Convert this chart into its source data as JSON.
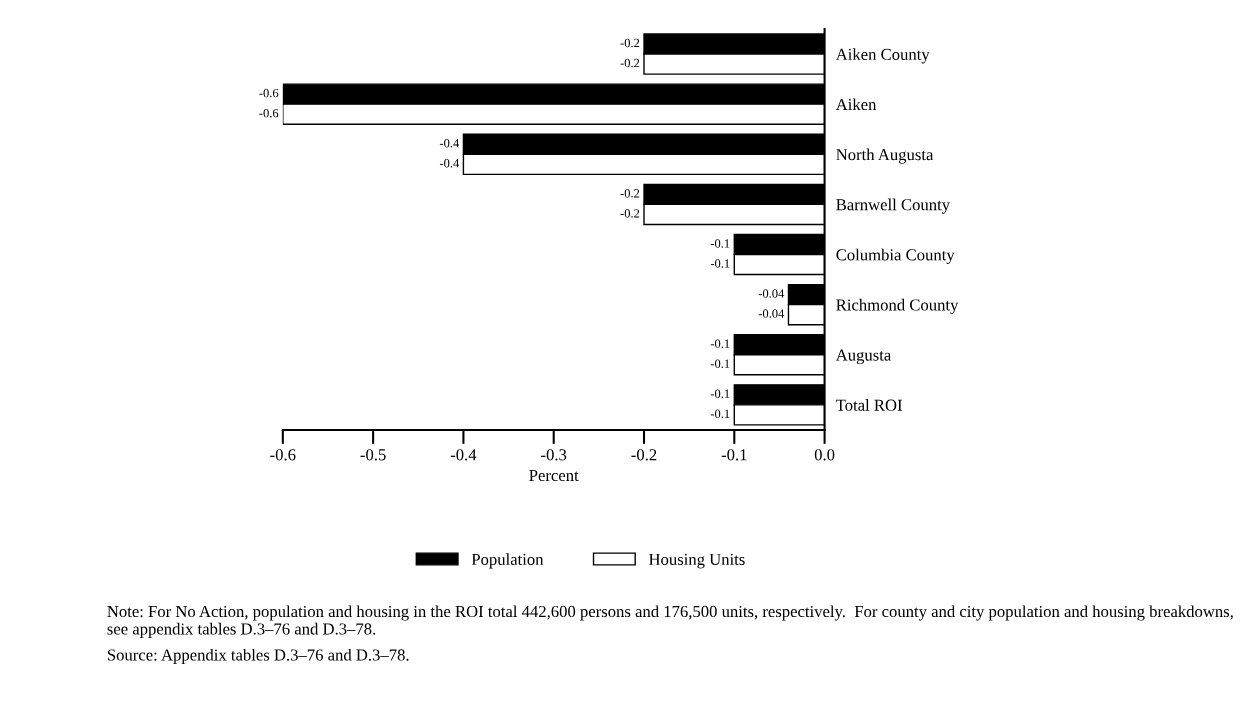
{
  "chart_data": {
    "type": "bar",
    "orientation": "horizontal",
    "xlabel": "Percent",
    "categories": [
      "Aiken County",
      "Aiken",
      "North Augusta",
      "Barnwell County",
      "Columbia County",
      "Richmond County",
      "Augusta",
      "Total ROI"
    ],
    "series": [
      {
        "name": "Population",
        "color": "#000000",
        "values": [
          -0.2,
          -0.6,
          -0.4,
          -0.2,
          -0.1,
          -0.04,
          -0.1,
          -0.1
        ]
      },
      {
        "name": "Housing Units",
        "color": "#ffffff",
        "values": [
          -0.2,
          -0.6,
          -0.4,
          -0.2,
          -0.1,
          -0.04,
          -0.1,
          -0.1
        ]
      }
    ],
    "xlim": [
      -0.6,
      0.0
    ],
    "xticks": [
      -0.6,
      -0.5,
      -0.4,
      -0.3,
      -0.2,
      -0.1,
      {
        "value": 0,
        "label": "0.0"
      }
    ],
    "data_labels": true,
    "legend": "bottom",
    "grid": false,
    "annotations": [
      "Note: For No Action, population and housing in the ROI total 442,600 persons and 176,500 units, respectively.  For county and city population and housing breakdowns, see appendix tables D.3–76 and D.3–78.",
      "Source: Appendix tables D.3–76 and D.3–78."
    ]
  }
}
